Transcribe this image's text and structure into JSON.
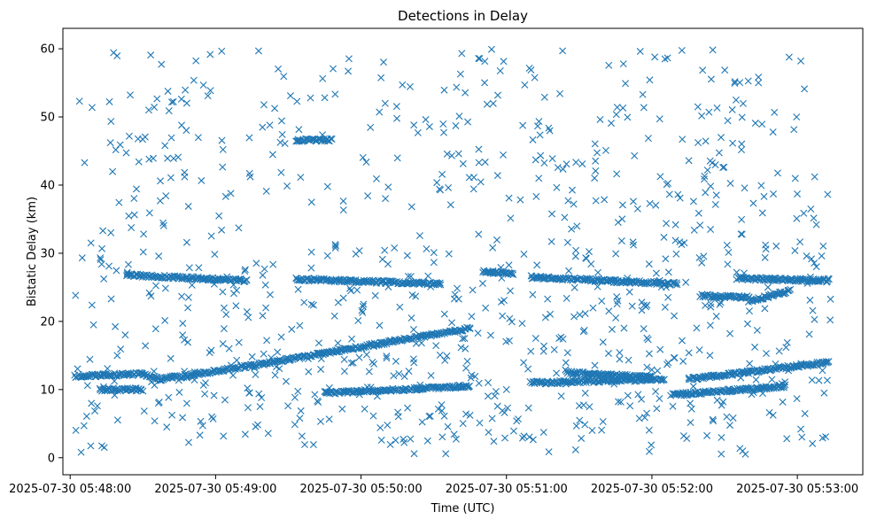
{
  "chart_data": {
    "type": "scatter",
    "title": "Detections in Delay",
    "xlabel": "Time (UTC)",
    "ylabel": "Bistatic Delay (km)",
    "marker": "x",
    "marker_color": "#1f77b4",
    "grid": false,
    "legend": "none",
    "xlim": [
      "2025-07-30 05:47:57",
      "2025-07-30 05:53:27"
    ],
    "ylim": [
      -2.5,
      63
    ],
    "xticks": [
      "2025-07-30 05:48:00",
      "2025-07-30 05:49:00",
      "2025-07-30 05:50:00",
      "2025-07-30 05:51:00",
      "2025-07-30 05:52:00",
      "2025-07-30 05:53:00"
    ],
    "yticks": [
      0,
      10,
      20,
      30,
      40,
      50,
      60
    ],
    "series": [
      {
        "time_range": [
          "2025-07-30 05:48:02",
          "2025-07-30 05:53:14"
        ],
        "tracks": [
          {
            "from": [
              "2025-07-30 05:48:02",
              12.0
            ],
            "to": [
              "2025-07-30 05:48:30",
              12.3
            ]
          },
          {
            "from": [
              "2025-07-30 05:48:30",
              12.3
            ],
            "to": [
              "2025-07-30 05:48:37",
              11.5
            ]
          },
          {
            "from": [
              "2025-07-30 05:48:37",
              11.5
            ],
            "to": [
              "2025-07-30 05:49:15",
              13.5
            ]
          },
          {
            "from": [
              "2025-07-30 05:49:15",
              13.5
            ],
            "to": [
              "2025-07-30 05:50:45",
              19.0
            ]
          },
          {
            "from": [
              "2025-07-30 05:48:23",
              26.8
            ],
            "to": [
              "2025-07-30 05:49:13",
              26.0
            ]
          },
          {
            "from": [
              "2025-07-30 05:49:33",
              26.2
            ],
            "to": [
              "2025-07-30 05:50:33",
              25.5
            ]
          },
          {
            "from": [
              "2025-07-30 05:50:50",
              27.3
            ],
            "to": [
              "2025-07-30 05:51:03",
              27.0
            ]
          },
          {
            "from": [
              "2025-07-30 05:51:10",
              26.5
            ],
            "to": [
              "2025-07-30 05:52:10",
              25.5
            ]
          },
          {
            "from": [
              "2025-07-30 05:52:35",
              26.3
            ],
            "to": [
              "2025-07-30 05:53:13",
              26.0
            ]
          },
          {
            "from": [
              "2025-07-30 05:52:20",
              23.8
            ],
            "to": [
              "2025-07-30 05:52:40",
              23.5
            ]
          },
          {
            "from": [
              "2025-07-30 05:52:40",
              23.0
            ],
            "to": [
              "2025-07-30 05:52:57",
              24.5
            ]
          },
          {
            "from": [
              "2025-07-30 05:48:12",
              10.0
            ],
            "to": [
              "2025-07-30 05:48:30",
              10.0
            ]
          },
          {
            "from": [
              "2025-07-30 05:49:45",
              9.5
            ],
            "to": [
              "2025-07-30 05:50:45",
              10.5
            ]
          },
          {
            "from": [
              "2025-07-30 05:49:33",
              46.6
            ],
            "to": [
              "2025-07-30 05:49:48",
              46.6
            ]
          },
          {
            "from": [
              "2025-07-30 05:51:10",
              11.0
            ],
            "to": [
              "2025-07-30 05:52:05",
              11.5
            ]
          },
          {
            "from": [
              "2025-07-30 05:51:25",
              12.5
            ],
            "to": [
              "2025-07-30 05:52:00",
              11.8
            ]
          },
          {
            "from": [
              "2025-07-30 05:52:15",
              11.5
            ],
            "to": [
              "2025-07-30 05:53:13",
              14.0
            ]
          },
          {
            "from": [
              "2025-07-30 05:52:08",
              9.2
            ],
            "to": [
              "2025-07-30 05:52:55",
              10.5
            ]
          }
        ]
      }
    ]
  }
}
